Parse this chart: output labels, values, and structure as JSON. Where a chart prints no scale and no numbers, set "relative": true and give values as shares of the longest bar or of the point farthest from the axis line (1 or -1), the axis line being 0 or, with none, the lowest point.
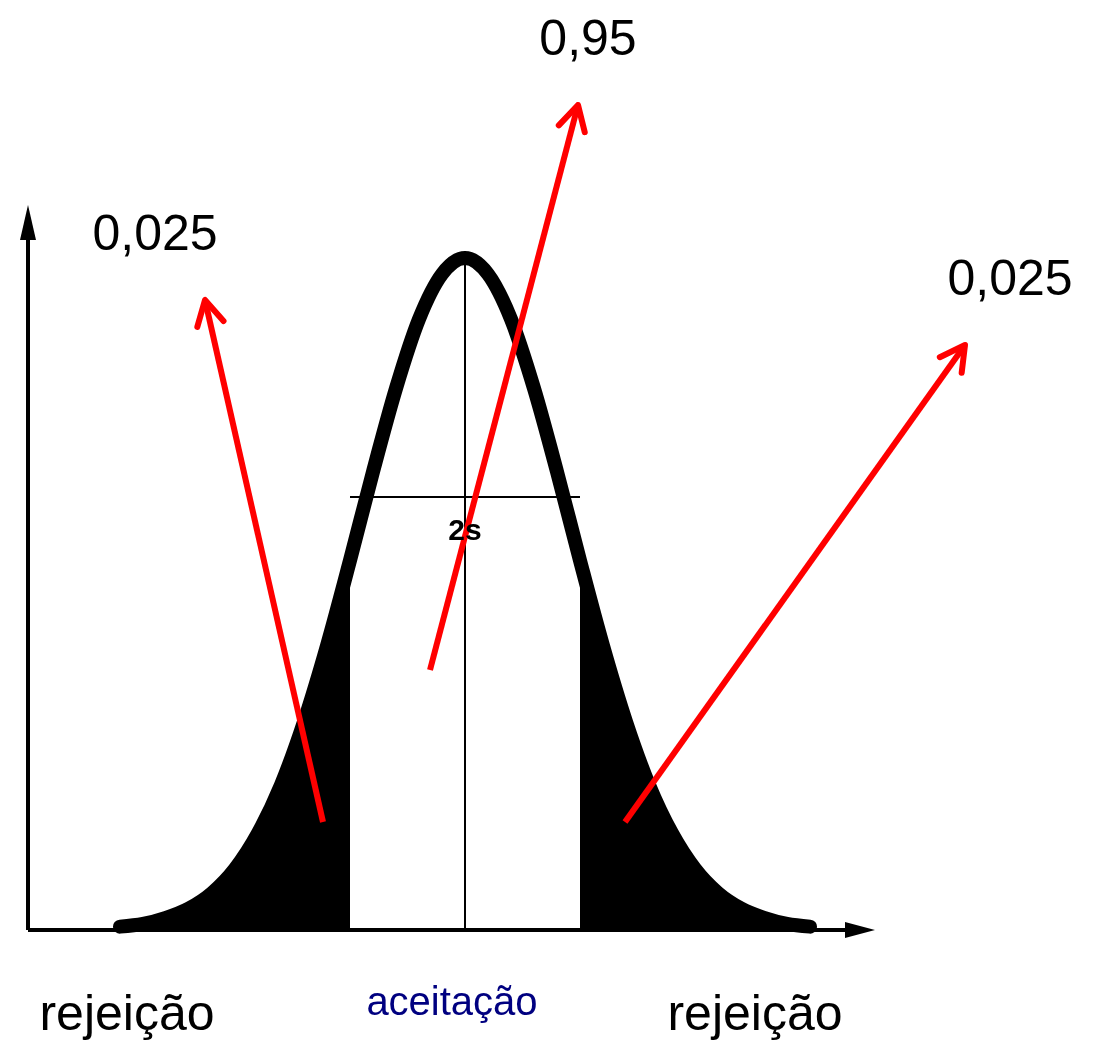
{
  "chart_data": {
    "type": "area",
    "relative": true,
    "categories": [
      null,
      null,
      null,
      null,
      null,
      null,
      null,
      null,
      null,
      null,
      null,
      null,
      null,
      null,
      null,
      null,
      null,
      null,
      null,
      null,
      null,
      null,
      null,
      null,
      null,
      null,
      null,
      null,
      null,
      null,
      null
    ],
    "series": [
      {
        "color": "#000000",
        "values": [
          0.005,
          0.009,
          0.018,
          0.032,
          0.055,
          0.091,
          0.144,
          0.216,
          0.31,
          0.423,
          0.55,
          null,
          null,
          null,
          null,
          null,
          null,
          null,
          null,
          null,
          0.55,
          0.423,
          0.31,
          0.216,
          0.144,
          0.091,
          0.055,
          0.032,
          0.018,
          0.009,
          0.005
        ]
      },
      {
        "type": "line",
        "color": "#000000",
        "values": [
          0.005,
          0.009,
          0.018,
          0.032,
          0.055,
          0.091,
          0.144,
          0.216,
          0.31,
          0.423,
          0.55,
          0.682,
          0.806,
          0.909,
          0.976,
          1,
          0.976,
          0.909,
          0.806,
          0.682,
          0.55,
          0.423,
          0.31,
          0.216,
          0.144,
          0.091,
          0.055,
          0.032,
          0.018,
          0.009,
          0.005
        ]
      }
    ],
    "annotations": [
      "0,025",
      "0,95",
      "0,025",
      "rejeição",
      "aceitação",
      "rejeição",
      "2s"
    ]
  }
}
